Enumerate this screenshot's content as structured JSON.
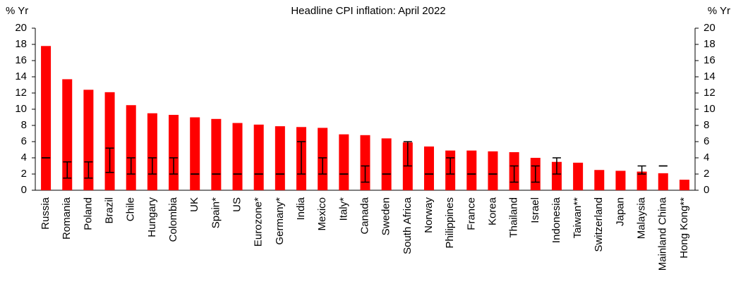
{
  "chart_data": {
    "type": "bar",
    "title": "Headline CPI inflation: April 2022",
    "y_label": "% Yr",
    "y2_label": "% Yr",
    "categories": [
      "Russia",
      "Romania",
      "Poland",
      "Brazil",
      "Chile",
      "Hungary",
      "Colombia",
      "UK",
      "Spain*",
      "US",
      "Eurozone*",
      "Germany*",
      "India",
      "Mexico",
      "Italy*",
      "Canada",
      "Sweden",
      "South Africa",
      "Norway",
      "Philippines",
      "France",
      "Korea",
      "Thailand",
      "Israel",
      "Indonesia",
      "Taiwan**",
      "Switzerland",
      "Japan",
      "Malaysia",
      "Mainland China",
      "Hong Kong**"
    ],
    "values": [
      17.8,
      13.7,
      12.4,
      12.1,
      10.5,
      9.5,
      9.3,
      9.0,
      8.8,
      8.3,
      8.1,
      7.9,
      7.8,
      7.7,
      6.9,
      6.8,
      6.4,
      5.9,
      5.4,
      4.9,
      4.9,
      4.8,
      4.7,
      4.0,
      3.5,
      3.4,
      2.5,
      2.4,
      2.3,
      2.1,
      1.3
    ],
    "target_low": [
      4,
      1.5,
      1.5,
      2.2,
      2,
      2,
      2,
      2,
      2,
      2,
      2,
      2,
      2,
      2,
      2,
      1,
      2,
      3,
      2,
      2,
      2,
      2,
      1,
      1,
      2,
      null,
      null,
      null,
      2,
      3,
      null
    ],
    "target_high": [
      4,
      3.5,
      3.5,
      5.2,
      4,
      4,
      4,
      2,
      2,
      2,
      2,
      2,
      6,
      4,
      2,
      3,
      2,
      6,
      2,
      4,
      2,
      2,
      3,
      3,
      4,
      null,
      null,
      null,
      3,
      3,
      null
    ],
    "color": "#ff0000",
    "ylim": [
      0,
      20
    ],
    "yticks": [
      0,
      2,
      4,
      6,
      8,
      10,
      12,
      14,
      16,
      18,
      20
    ],
    "y2lim": [
      0,
      20
    ],
    "y2ticks": [
      0,
      2,
      4,
      6,
      8,
      10,
      12,
      14,
      16,
      18,
      20
    ],
    "grid": false
  }
}
